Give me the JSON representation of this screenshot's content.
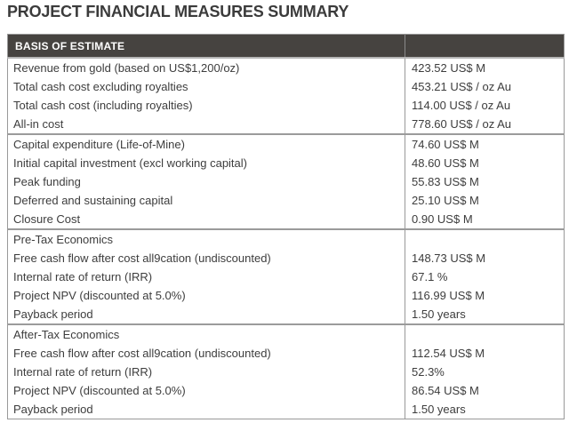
{
  "page": {
    "title": "PROJECT FINANCIAL MEASURES SUMMARY"
  },
  "colors": {
    "header_bg": "#464340",
    "header_text": "#ffffff",
    "body_text": "#3d3d3d",
    "border": "#999999",
    "title_text": "#3b3b3b"
  },
  "table": {
    "header": {
      "label": "BASIS OF ESTIMATE",
      "value": ""
    },
    "sections": [
      {
        "rows": [
          {
            "label": "Revenue from gold (based on US$1,200/oz)",
            "value": "423.52 US$ M"
          },
          {
            "label": "Total cash cost excluding royalties",
            "value": "453.21 US$ / oz Au"
          },
          {
            "label": "Total cash cost (including royalties)",
            "value": "114.00 US$ / oz Au"
          },
          {
            "label": "All-in cost",
            "value": "778.60 US$ / oz Au"
          }
        ]
      },
      {
        "rows": [
          {
            "label": "Capital expenditure (Life-of-Mine)",
            "value": "74.60 US$ M"
          },
          {
            "label": "Initial capital investment (excl working capital)",
            "value": "48.60 US$ M"
          },
          {
            "label": "Peak funding",
            "value": "55.83 US$ M"
          },
          {
            "label": "Deferred and sustaining capital",
            "value": "25.10 US$ M"
          },
          {
            "label": "Closure Cost",
            "value": "0.90 US$ M"
          }
        ]
      },
      {
        "rows": [
          {
            "label": "Pre-Tax Economics",
            "value": ""
          },
          {
            "label": "Free cash flow after cost all9cation (undiscounted)",
            "value": "148.73 US$ M"
          },
          {
            "label": "Internal rate of return (IRR)",
            "value": "67.1 %"
          },
          {
            "label": "Project NPV (discounted at 5.0%)",
            "value": "116.99 US$ M"
          },
          {
            "label": "Payback period",
            "value": "1.50 years"
          }
        ]
      },
      {
        "rows": [
          {
            "label": "After-Tax Economics",
            "value": ""
          },
          {
            "label": "Free cash flow after cost all9cation (undiscounted)",
            "value": "112.54 US$ M"
          },
          {
            "label": "Internal rate of return (IRR)",
            "value": "52.3%"
          },
          {
            "label": "Project NPV (discounted at 5.0%)",
            "value": "86.54 US$ M"
          },
          {
            "label": "Payback period",
            "value": "1.50 years"
          }
        ]
      }
    ]
  }
}
